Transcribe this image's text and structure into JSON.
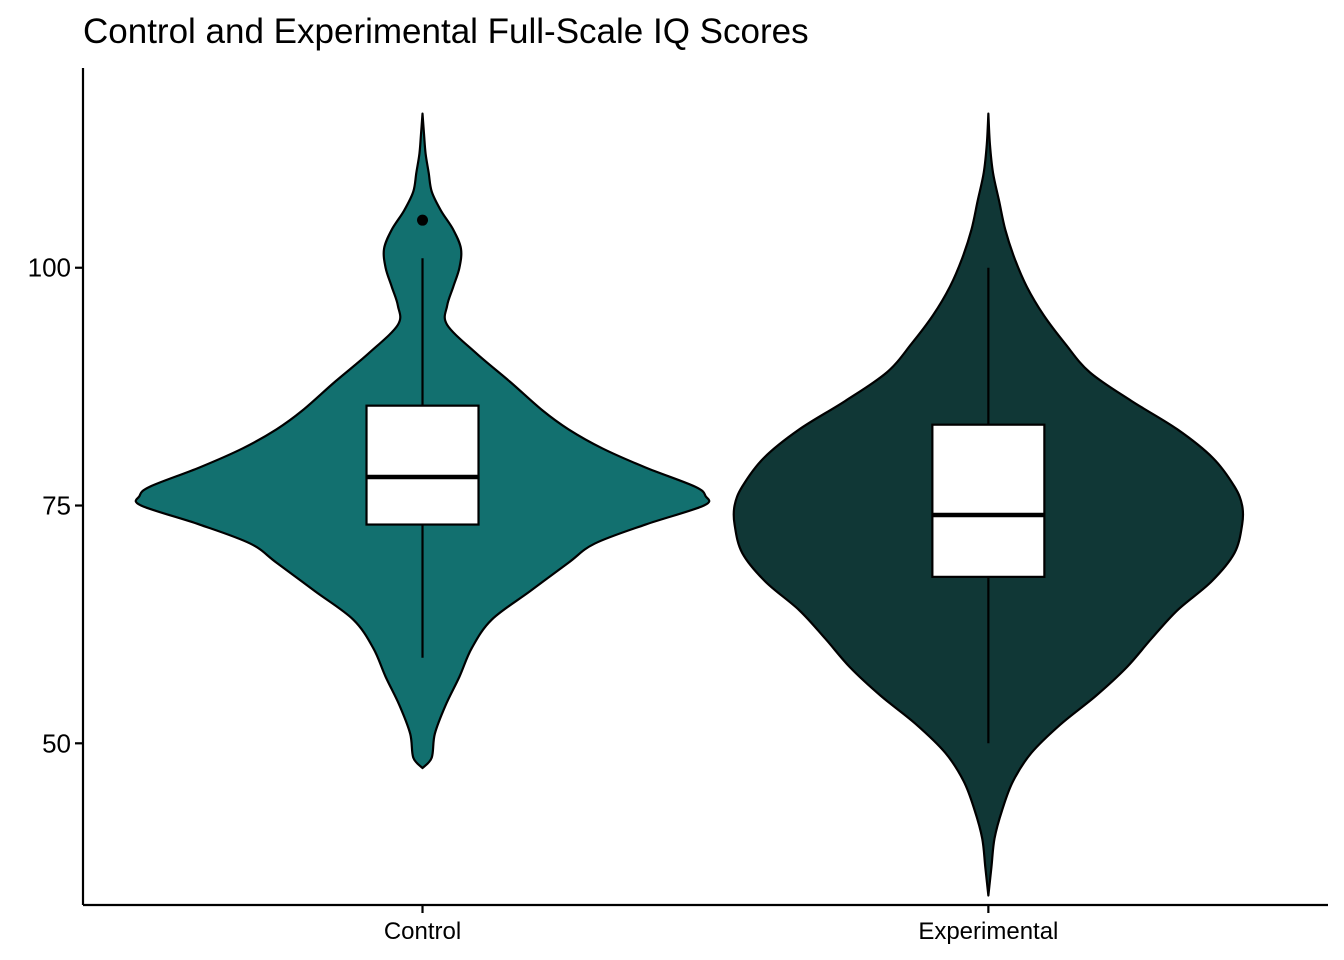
{
  "chart_data": {
    "type": "violin",
    "title": "Control and Experimental Full-Scale IQ Scores",
    "xlabel": "",
    "ylabel": "",
    "ylim": [
      33,
      121
    ],
    "y_ticks": [
      50,
      75,
      100
    ],
    "y_tick_labels": [
      "50",
      "75",
      "100"
    ],
    "grid": false,
    "legend": "none",
    "categories": [
      "Control",
      "Experimental"
    ],
    "series": [
      {
        "fill_color": "#12706F",
        "violin": {
          "y": [
            47.4,
            48.5,
            51,
            54,
            57,
            60,
            63,
            66,
            69,
            71,
            73,
            75,
            76,
            77,
            79,
            81,
            83,
            85,
            88,
            91,
            94,
            96,
            98,
            100,
            102,
            104,
            106,
            108,
            110,
            112,
            114,
            116.2
          ],
          "density": [
            0.0,
            0.06,
            0.08,
            0.15,
            0.24,
            0.32,
            0.45,
            0.7,
            0.95,
            1.12,
            1.45,
            1.83,
            1.84,
            1.77,
            1.45,
            1.17,
            0.95,
            0.78,
            0.57,
            0.35,
            0.16,
            0.16,
            0.2,
            0.24,
            0.25,
            0.2,
            0.12,
            0.06,
            0.04,
            0.02,
            0.01,
            0.0
          ]
        },
        "box": {
          "lower_whisker": 59,
          "q1": 73,
          "median": 78,
          "q3": 85.5,
          "upper_whisker": 101,
          "outliers": [
            105
          ]
        }
      },
      {
        "fill_color": "#103736",
        "violin": {
          "y": [
            34,
            37,
            40,
            43,
            46,
            49,
            52,
            55,
            58,
            61,
            64,
            67,
            70,
            73,
            75,
            77,
            80,
            83,
            86,
            89,
            92,
            95,
            98,
            101,
            104,
            107,
            110,
            113,
            116.2
          ],
          "density": [
            0.0,
            0.02,
            0.04,
            0.09,
            0.16,
            0.28,
            0.47,
            0.7,
            0.9,
            1.06,
            1.23,
            1.45,
            1.6,
            1.65,
            1.65,
            1.6,
            1.46,
            1.23,
            0.93,
            0.66,
            0.5,
            0.36,
            0.25,
            0.17,
            0.11,
            0.07,
            0.03,
            0.01,
            0.0
          ]
        },
        "box": {
          "lower_whisker": 50,
          "q1": 67.5,
          "median": 74,
          "q3": 83.5,
          "upper_whisker": 100,
          "outliers": []
        }
      }
    ]
  }
}
